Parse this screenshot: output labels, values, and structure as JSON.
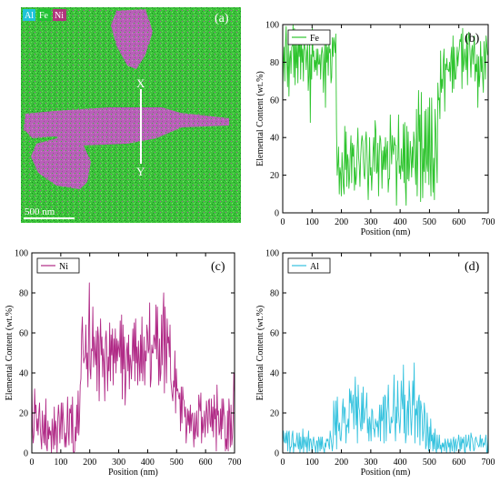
{
  "panel_a": {
    "panel_label": "(a)",
    "legend": [
      {
        "label": "Al",
        "color": "#1fc4d8"
      },
      {
        "label": "Fe",
        "color": "#22c234"
      },
      {
        "label": "Ni",
        "color": "#b0367c"
      }
    ],
    "scale_bar": "500 nm",
    "line_start_label": "X",
    "line_end_label": "Y",
    "background_color": "#3cc43a",
    "particle_color": "#b860b8"
  },
  "chart_data": [
    {
      "type": "line",
      "panel_label": "(b)",
      "series": [
        {
          "name": "Fe",
          "color": "#2ec42e",
          "values": [
            67,
            80,
            88,
            70,
            90,
            99,
            79,
            67,
            95,
            62,
            82,
            86,
            74,
            88,
            89,
            100,
            72,
            98,
            68,
            90,
            77,
            90,
            69,
            96,
            83,
            97,
            71,
            95,
            80,
            87,
            70,
            93,
            88,
            86,
            76,
            85,
            90,
            65,
            73,
            92,
            48,
            84,
            71,
            98,
            83,
            86,
            75,
            81,
            76,
            87,
            73,
            87,
            79,
            79,
            84,
            71,
            84,
            88,
            84,
            64,
            79,
            90,
            56,
            95,
            80,
            88,
            73,
            91,
            85,
            87,
            69,
            72,
            93,
            83,
            93,
            90,
            85,
            95,
            45,
            20,
            26,
            35,
            10,
            24,
            21,
            9,
            32,
            23,
            14,
            10,
            46,
            23,
            43,
            14,
            31,
            28,
            13,
            19,
            33,
            41,
            16,
            37,
            30,
            36,
            12,
            24,
            15,
            20,
            34,
            45,
            30,
            25,
            14,
            29,
            37,
            41,
            38,
            27,
            20,
            18,
            38,
            43,
            35,
            20,
            7,
            23,
            40,
            20,
            24,
            12,
            22,
            33,
            40,
            22,
            49,
            44,
            21,
            22,
            37,
            9,
            30,
            41,
            39,
            31,
            13,
            33,
            23,
            35,
            23,
            40,
            23,
            33,
            38,
            11,
            18,
            18,
            52,
            37,
            26,
            41,
            34,
            31,
            40,
            36,
            36,
            4,
            27,
            29,
            52,
            21,
            25,
            18,
            34,
            24,
            22,
            47,
            16,
            48,
            14,
            4,
            46,
            18,
            43,
            17,
            25,
            38,
            30,
            19,
            35,
            24,
            43,
            38,
            24,
            15,
            55,
            9,
            30,
            65,
            38,
            52,
            6,
            64,
            35,
            8,
            34,
            22,
            54,
            16,
            55,
            26,
            22,
            56,
            15,
            61,
            26,
            9,
            61,
            32,
            11,
            29,
            7,
            55,
            44,
            29,
            16,
            69,
            60,
            61,
            50,
            86,
            64,
            71,
            66,
            81,
            87,
            54,
            79,
            76,
            82,
            76,
            76,
            75,
            80,
            70,
            83,
            88,
            64,
            94,
            66,
            88,
            71,
            71,
            77,
            88,
            78,
            84,
            87,
            92,
            91,
            95,
            66,
            98,
            75,
            79,
            87,
            81,
            76,
            95,
            68,
            91,
            96,
            91,
            82,
            72,
            86,
            89,
            79,
            87,
            94,
            70,
            79,
            75,
            84,
            56,
            83,
            67,
            73,
            91,
            75,
            83,
            72,
            64,
            91,
            85,
            71,
            94,
            89,
            84,
            85
          ]
        }
      ],
      "x_range": [
        0,
        700
      ],
      "xlim": [
        0,
        700
      ],
      "ylim": [
        0,
        100
      ],
      "x_ticks": [
        0,
        100,
        200,
        300,
        400,
        500,
        600,
        700
      ],
      "y_ticks": [
        0,
        20,
        40,
        60,
        80,
        100
      ],
      "xlabel": "Position (nm)",
      "ylabel": "Elemental Content (wt.%)",
      "legend_position": "top-left"
    },
    {
      "type": "line",
      "panel_label": "(c)",
      "series": [
        {
          "name": "Ni",
          "color": "#b02a86",
          "values": [
            34,
            13,
            5,
            9,
            32,
            20,
            24,
            11,
            17,
            9,
            20,
            25,
            13,
            7,
            2,
            21,
            11,
            5,
            19,
            4,
            27,
            3,
            1,
            16,
            7,
            13,
            9,
            11,
            0,
            17,
            11,
            2,
            23,
            4,
            16,
            12,
            0,
            17,
            24,
            18,
            5,
            15,
            25,
            7,
            25,
            18,
            12,
            3,
            10,
            3,
            12,
            28,
            11,
            4,
            22,
            20,
            24,
            5,
            28,
            1,
            0,
            1,
            13,
            6,
            24,
            10,
            31,
            9,
            17,
            34,
            37,
            59,
            68,
            52,
            45,
            47,
            48,
            64,
            42,
            50,
            33,
            61,
            85,
            42,
            37,
            52,
            51,
            73,
            43,
            58,
            50,
            44,
            61,
            31,
            63,
            58,
            26,
            54,
            67,
            49,
            58,
            38,
            52,
            45,
            26,
            57,
            61,
            50,
            31,
            48,
            41,
            65,
            36,
            59,
            49,
            62,
            34,
            57,
            45,
            62,
            40,
            57,
            46,
            56,
            52,
            48,
            66,
            40,
            69,
            27,
            64,
            42,
            58,
            24,
            36,
            51,
            55,
            41,
            59,
            32,
            49,
            46,
            37,
            48,
            62,
            46,
            65,
            36,
            67,
            45,
            53,
            34,
            56,
            46,
            36,
            59,
            40,
            68,
            36,
            47,
            58,
            34,
            51,
            46,
            64,
            60,
            50,
            52,
            75,
            33,
            37,
            54,
            50,
            50,
            59,
            57,
            52,
            74,
            47,
            73,
            53,
            34,
            57,
            36,
            40,
            69,
            44,
            69,
            80,
            30,
            73,
            52,
            35,
            67,
            55,
            58,
            48,
            64,
            37,
            33,
            29,
            26,
            36,
            33,
            51,
            20,
            42,
            31,
            32,
            29,
            27,
            30,
            11,
            33,
            15,
            33,
            27,
            26,
            18,
            23,
            5,
            12,
            22,
            14,
            21,
            10,
            24,
            11,
            19,
            20,
            12,
            3,
            20,
            7,
            12,
            21,
            9,
            8,
            29,
            24,
            21,
            30,
            5,
            18,
            10,
            15,
            21,
            8,
            16,
            26,
            19,
            10,
            26,
            27,
            15,
            13,
            27,
            11,
            23,
            8,
            29,
            17,
            22,
            1,
            34,
            19,
            21,
            9,
            11,
            22,
            7,
            27,
            12,
            27,
            20,
            18,
            1,
            7,
            2,
            21,
            1,
            27,
            20,
            3,
            24,
            4,
            8,
            17,
            40,
            30
          ]
        }
      ],
      "x_range": [
        0,
        700
      ],
      "xlim": [
        0,
        700
      ],
      "ylim": [
        0,
        100
      ],
      "x_ticks": [
        0,
        100,
        200,
        300,
        400,
        500,
        600,
        700
      ],
      "y_ticks": [
        0,
        20,
        40,
        60,
        80,
        100
      ],
      "xlabel": "Position (nm)",
      "ylabel": "Elemental Content (wt.%)",
      "legend_position": "top-left"
    },
    {
      "type": "line",
      "panel_label": "(d)",
      "series": [
        {
          "name": "Al",
          "color": "#34c2de",
          "values": [
            4,
            11,
            6,
            5,
            10,
            5,
            11,
            1,
            10,
            11,
            0,
            3,
            3,
            9,
            11,
            0,
            5,
            4,
            3,
            6,
            10,
            4,
            2,
            10,
            0,
            8,
            2,
            3,
            12,
            0,
            8,
            6,
            3,
            8,
            0,
            6,
            11,
            1,
            7,
            7,
            4,
            0,
            6,
            8,
            4,
            3,
            0,
            6,
            6,
            0,
            8,
            6,
            1,
            8,
            2,
            8,
            3,
            2,
            0,
            5,
            3,
            7,
            6,
            7,
            4,
            2,
            11,
            8,
            5,
            1,
            5,
            26,
            16,
            9,
            26,
            2,
            28,
            16,
            11,
            15,
            7,
            6,
            12,
            22,
            27,
            15,
            23,
            22,
            5,
            14,
            13,
            17,
            10,
            32,
            25,
            31,
            20,
            25,
            29,
            12,
            25,
            38,
            14,
            28,
            5,
            34,
            23,
            21,
            14,
            11,
            30,
            12,
            33,
            15,
            17,
            22,
            23,
            30,
            10,
            17,
            6,
            18,
            14,
            6,
            22,
            21,
            12,
            12,
            8,
            17,
            15,
            13,
            16,
            8,
            16,
            24,
            6,
            24,
            16,
            17,
            28,
            5,
            29,
            28,
            6,
            20,
            23,
            34,
            18,
            10,
            10,
            18,
            15,
            16,
            25,
            39,
            16,
            6,
            23,
            15,
            36,
            21,
            16,
            10,
            17,
            36,
            27,
            22,
            44,
            10,
            29,
            5,
            9,
            21,
            26,
            9,
            36,
            28,
            19,
            9,
            18,
            36,
            24,
            45,
            5,
            22,
            19,
            26,
            8,
            27,
            29,
            4,
            26,
            23,
            19,
            6,
            11,
            25,
            20,
            2,
            4,
            20,
            10,
            1,
            13,
            2,
            17,
            6,
            9,
            1,
            10,
            2,
            12,
            2,
            0,
            9,
            2,
            3,
            9,
            2,
            4,
            0,
            5,
            3,
            5,
            1,
            7,
            5,
            0,
            4,
            7,
            3,
            5,
            0,
            7,
            4,
            1,
            6,
            8,
            0,
            5,
            7,
            1,
            4,
            6,
            9,
            5,
            1,
            8,
            2,
            7,
            5,
            8,
            1,
            0,
            9,
            3,
            4,
            6,
            9,
            3,
            1,
            10,
            8,
            7,
            4,
            1,
            2,
            7,
            8,
            6,
            5,
            4,
            3,
            4,
            9,
            3,
            7,
            7,
            3,
            5,
            4,
            7,
            9,
            0,
            1,
            8
          ]
        }
      ],
      "x_range": [
        0,
        700
      ],
      "xlim": [
        0,
        700
      ],
      "ylim": [
        0,
        100
      ],
      "x_ticks": [
        0,
        100,
        200,
        300,
        400,
        500,
        600,
        700
      ],
      "y_ticks": [
        0,
        20,
        40,
        60,
        80,
        100
      ],
      "xlabel": "Position (nm)",
      "ylabel": "Elemental Content (wt.%)",
      "legend_position": "top-left"
    }
  ]
}
